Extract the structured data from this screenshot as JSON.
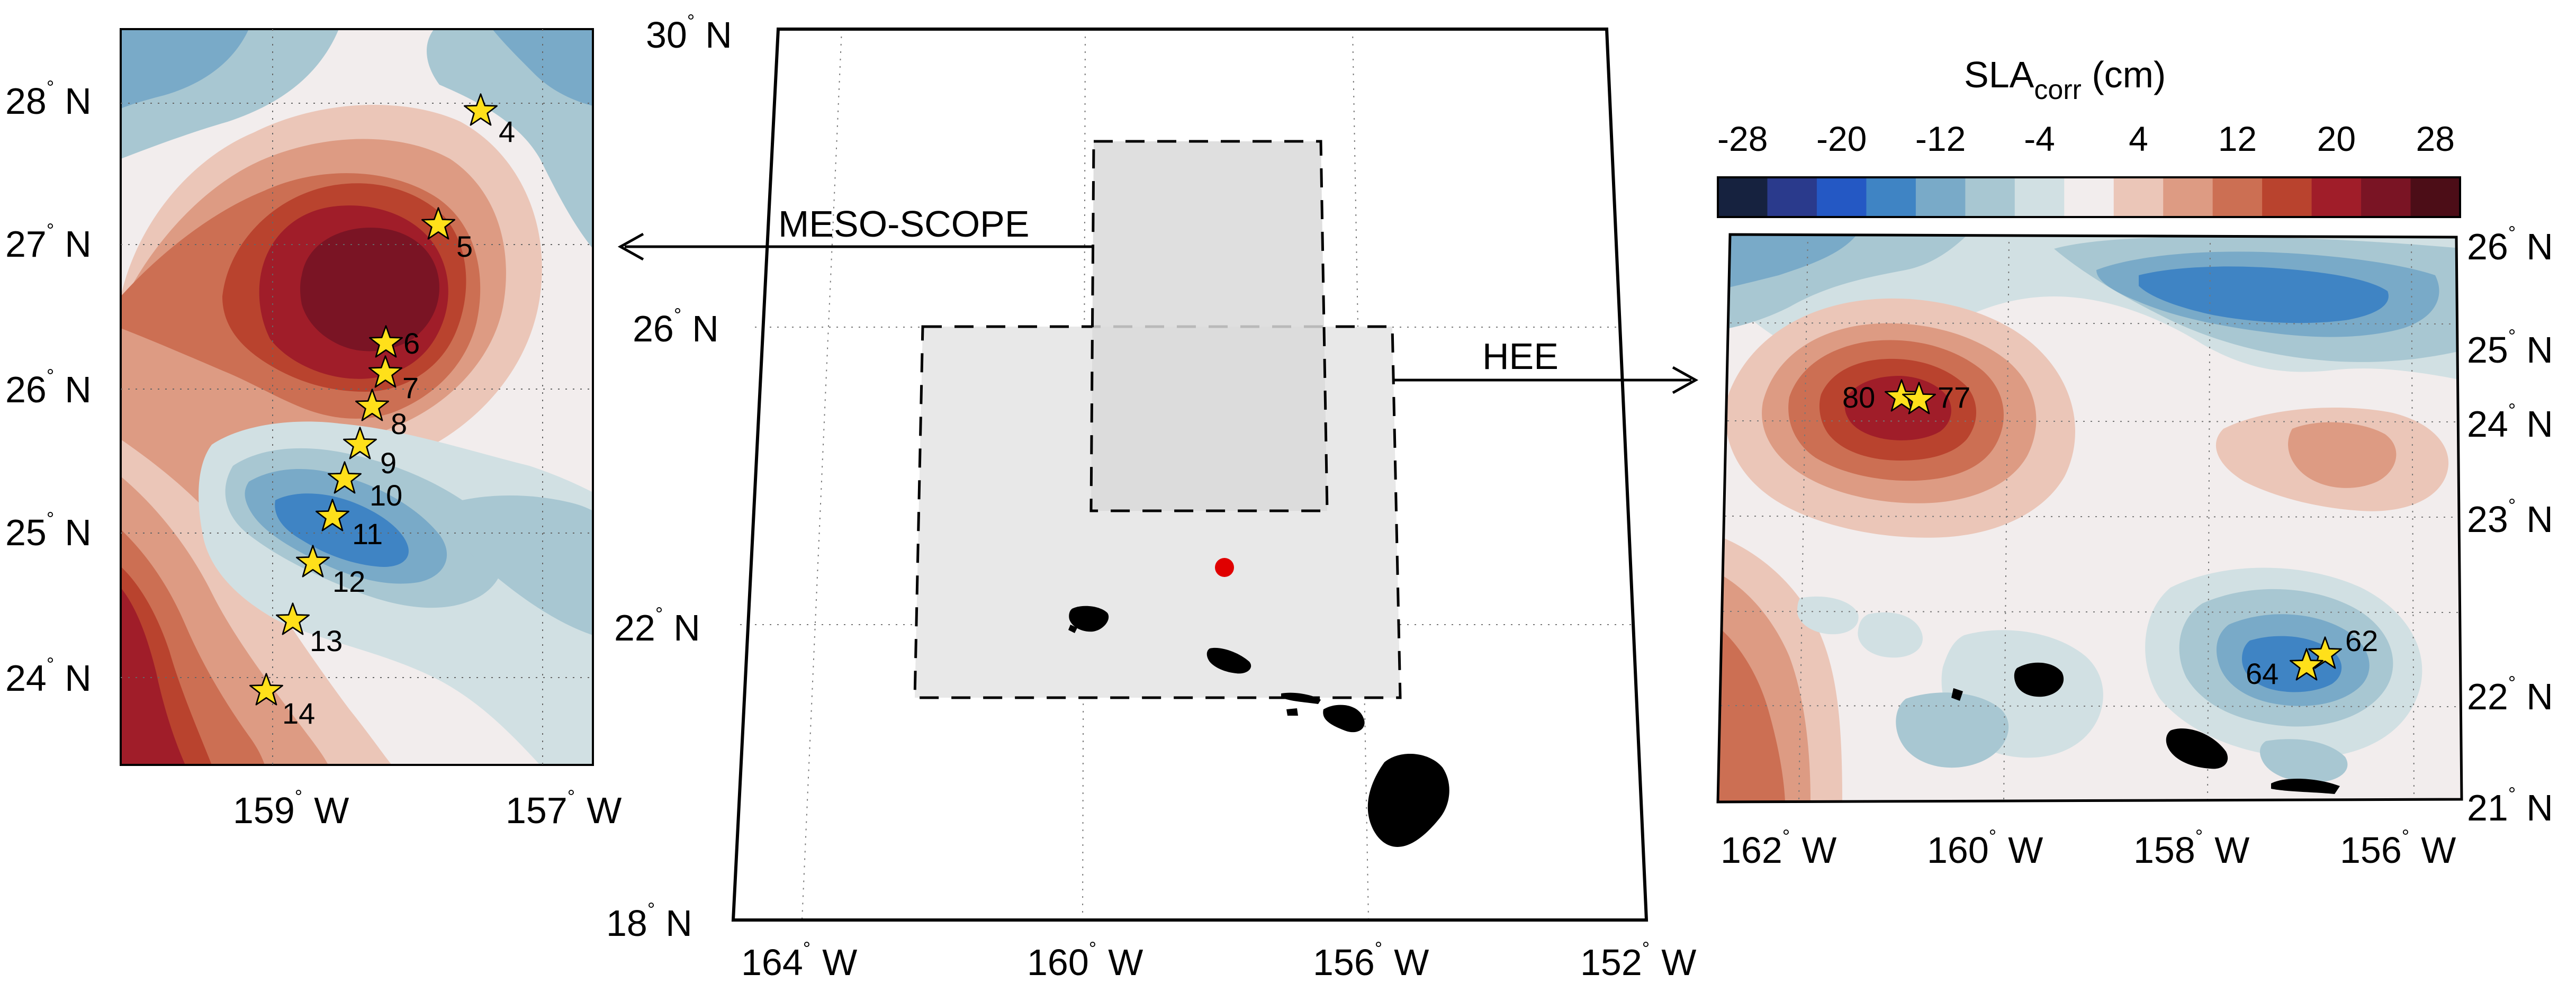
{
  "colorbar": {
    "title_main": "SLA",
    "title_sub": "corr",
    "title_unit": " (cm)",
    "tick_labels": [
      "-28",
      "-20",
      "-12",
      "-4",
      "4",
      "12",
      "20",
      "28"
    ],
    "colors": [
      "#16223f",
      "#2a3a8c",
      "#2458c4",
      "#3f84c4",
      "#79aac8",
      "#a8c7d2",
      "#d1e0e3",
      "#f2eded",
      "#ebc6b8",
      "#dd9b83",
      "#cc6f53",
      "#b9432e",
      "#a01d29",
      "#7a1424",
      "#4c0d17"
    ]
  },
  "left_map": {
    "lat_labels": [
      "28",
      "27",
      "26",
      "25",
      "24"
    ],
    "lon_labels": [
      "159",
      "157"
    ],
    "stations": [
      {
        "id": "4"
      },
      {
        "id": "5"
      },
      {
        "id": "6"
      },
      {
        "id": "7"
      },
      {
        "id": "8"
      },
      {
        "id": "9"
      },
      {
        "id": "10"
      },
      {
        "id": "11"
      },
      {
        "id": "12"
      },
      {
        "id": "13"
      },
      {
        "id": "14"
      }
    ]
  },
  "center_map": {
    "lat_labels": [
      "30",
      "26",
      "22",
      "18"
    ],
    "lon_labels": [
      "164",
      "160",
      "156",
      "152"
    ],
    "region_labels": {
      "meso_scope": "MESO-SCOPE",
      "hee": "HEE"
    }
  },
  "right_map": {
    "lat_labels": [
      "26",
      "25",
      "24",
      "23",
      "22",
      "21"
    ],
    "lon_labels": [
      "162",
      "160",
      "158",
      "156"
    ],
    "stations": [
      {
        "id": "80"
      },
      {
        "id": "77"
      },
      {
        "id": "62"
      },
      {
        "id": "64"
      }
    ]
  },
  "units": {
    "north": "N",
    "west": "W",
    "degree": "°"
  }
}
